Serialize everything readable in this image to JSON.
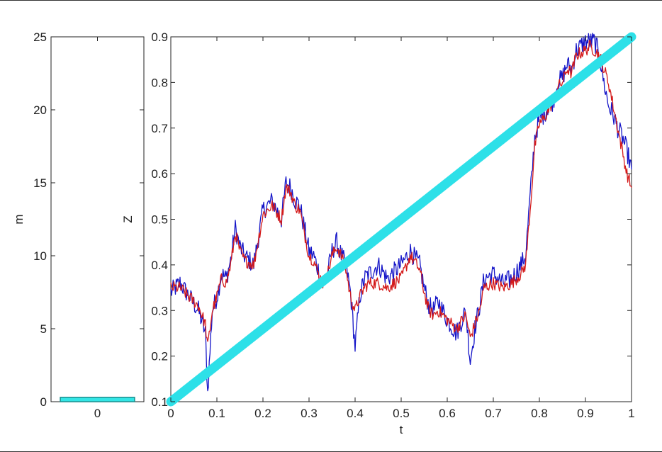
{
  "chart_data": [
    {
      "type": "bar",
      "categories": [
        "0"
      ],
      "values": [
        0.3
      ],
      "xlabel": "",
      "ylabel": "m",
      "ylim": [
        0,
        25
      ],
      "yticks": [
        0,
        5,
        10,
        15,
        20,
        25
      ],
      "grid": false,
      "colors": {
        "bar": "#33e6e6",
        "bar_edge": "#1a8f8f"
      }
    },
    {
      "type": "line",
      "xlabel": "t",
      "ylabel": "Z",
      "xlim": [
        0,
        1
      ],
      "ylim": [
        0.1,
        0.9
      ],
      "xticks": [
        0,
        0.1,
        0.2,
        0.3,
        0.4,
        0.5,
        0.6,
        0.7,
        0.8,
        0.9,
        1
      ],
      "yticks": [
        0.1,
        0.2,
        0.3,
        0.4,
        0.5,
        0.6,
        0.7,
        0.8,
        0.9
      ],
      "grid": false,
      "series": [
        {
          "color": "#1515c8",
          "x": [
            0,
            0.02,
            0.04,
            0.06,
            0.075,
            0.08,
            0.09,
            0.1,
            0.11,
            0.12,
            0.13,
            0.14,
            0.15,
            0.16,
            0.18,
            0.2,
            0.22,
            0.24,
            0.25,
            0.26,
            0.27,
            0.28,
            0.29,
            0.3,
            0.31,
            0.32,
            0.33,
            0.34,
            0.35,
            0.36,
            0.37,
            0.38,
            0.39,
            0.4,
            0.41,
            0.42,
            0.43,
            0.45,
            0.47,
            0.5,
            0.52,
            0.54,
            0.55,
            0.56,
            0.57,
            0.58,
            0.6,
            0.62,
            0.64,
            0.65,
            0.66,
            0.67,
            0.68,
            0.7,
            0.72,
            0.74,
            0.76,
            0.77,
            0.78,
            0.79,
            0.8,
            0.81,
            0.82,
            0.83,
            0.84,
            0.85,
            0.86,
            0.87,
            0.88,
            0.9,
            0.92,
            0.93,
            0.94,
            0.95,
            0.96,
            0.97,
            0.98,
            0.99,
            1.0
          ],
          "y": [
            0.34,
            0.36,
            0.33,
            0.3,
            0.25,
            0.12,
            0.3,
            0.33,
            0.38,
            0.37,
            0.41,
            0.48,
            0.44,
            0.42,
            0.4,
            0.52,
            0.54,
            0.5,
            0.58,
            0.57,
            0.54,
            0.53,
            0.48,
            0.43,
            0.42,
            0.39,
            0.36,
            0.38,
            0.43,
            0.45,
            0.42,
            0.4,
            0.34,
            0.22,
            0.33,
            0.37,
            0.38,
            0.4,
            0.37,
            0.4,
            0.43,
            0.4,
            0.35,
            0.31,
            0.3,
            0.32,
            0.28,
            0.25,
            0.3,
            0.19,
            0.26,
            0.31,
            0.37,
            0.38,
            0.36,
            0.37,
            0.4,
            0.42,
            0.55,
            0.68,
            0.72,
            0.73,
            0.75,
            0.76,
            0.8,
            0.81,
            0.84,
            0.83,
            0.87,
            0.89,
            0.89,
            0.86,
            0.8,
            0.75,
            0.73,
            0.7,
            0.68,
            0.65,
            0.61
          ]
        },
        {
          "color": "#d41a1a",
          "x": [
            0,
            0.02,
            0.04,
            0.06,
            0.075,
            0.08,
            0.09,
            0.1,
            0.11,
            0.12,
            0.13,
            0.14,
            0.15,
            0.16,
            0.18,
            0.2,
            0.22,
            0.24,
            0.25,
            0.26,
            0.27,
            0.28,
            0.29,
            0.3,
            0.31,
            0.32,
            0.33,
            0.34,
            0.35,
            0.36,
            0.37,
            0.38,
            0.39,
            0.4,
            0.41,
            0.42,
            0.43,
            0.45,
            0.47,
            0.5,
            0.52,
            0.54,
            0.55,
            0.56,
            0.57,
            0.58,
            0.6,
            0.62,
            0.64,
            0.65,
            0.66,
            0.67,
            0.68,
            0.7,
            0.72,
            0.74,
            0.76,
            0.77,
            0.78,
            0.79,
            0.8,
            0.81,
            0.82,
            0.83,
            0.84,
            0.85,
            0.86,
            0.87,
            0.88,
            0.9,
            0.91,
            0.92,
            0.93,
            0.94,
            0.95,
            0.96,
            0.97,
            0.98,
            0.99,
            1.0
          ],
          "y": [
            0.35,
            0.35,
            0.33,
            0.31,
            0.27,
            0.22,
            0.3,
            0.33,
            0.37,
            0.36,
            0.4,
            0.47,
            0.43,
            0.41,
            0.4,
            0.51,
            0.53,
            0.5,
            0.57,
            0.56,
            0.53,
            0.52,
            0.47,
            0.42,
            0.41,
            0.38,
            0.36,
            0.38,
            0.42,
            0.44,
            0.42,
            0.39,
            0.33,
            0.3,
            0.33,
            0.35,
            0.36,
            0.36,
            0.35,
            0.37,
            0.42,
            0.39,
            0.34,
            0.3,
            0.29,
            0.3,
            0.28,
            0.26,
            0.29,
            0.24,
            0.27,
            0.3,
            0.35,
            0.36,
            0.35,
            0.36,
            0.38,
            0.4,
            0.52,
            0.66,
            0.71,
            0.72,
            0.74,
            0.76,
            0.79,
            0.8,
            0.83,
            0.82,
            0.86,
            0.87,
            0.88,
            0.87,
            0.86,
            0.83,
            0.8,
            0.75,
            0.7,
            0.65,
            0.6,
            0.57
          ]
        },
        {
          "color": "#2de0e8",
          "x": [
            0,
            1
          ],
          "y": [
            0.1,
            0.9
          ]
        }
      ]
    }
  ]
}
